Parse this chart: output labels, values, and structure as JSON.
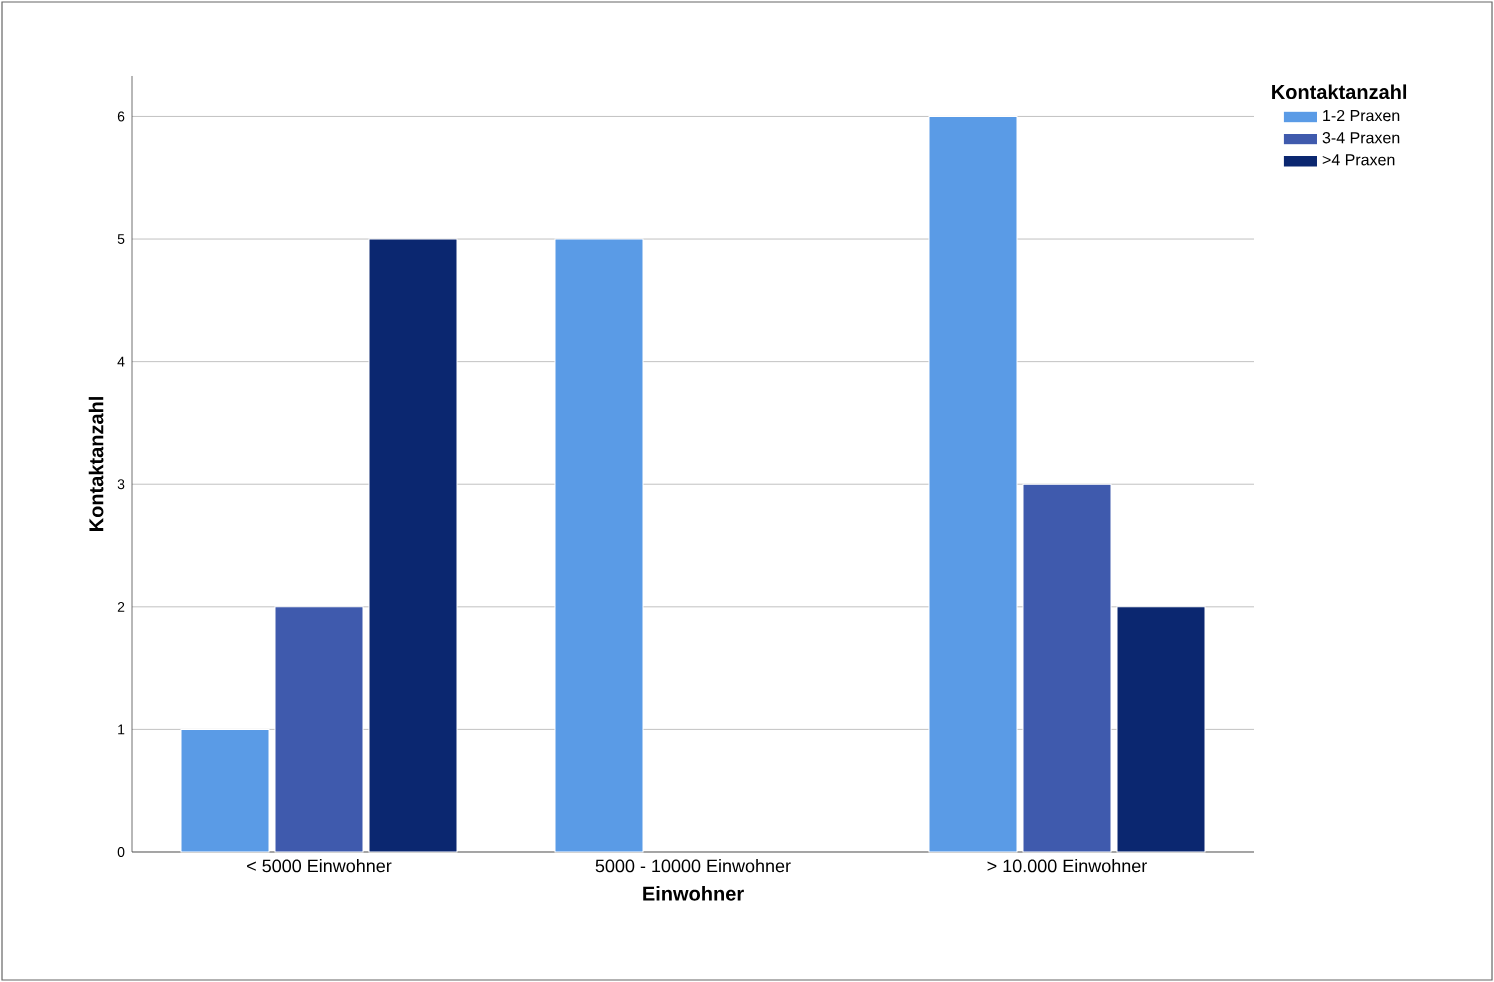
{
  "chart_data": {
    "type": "bar",
    "xlabel": "Einwohner",
    "ylabel": "Kontaktanzahl",
    "legend_title": "Kontaktanzahl",
    "legend": "top right",
    "grid": "y",
    "categories": [
      "< 5000 Einwohner",
      "5000 - 10000 Einwohner",
      "> 10.000 Einwohner"
    ],
    "ylim": [
      0,
      6.33
    ],
    "yticks": [
      0,
      1,
      2,
      3,
      4,
      5,
      6
    ],
    "series": [
      {
        "name": "1-2 Praxen",
        "color": "#5a9be6",
        "values": [
          1,
          5,
          6
        ]
      },
      {
        "name": "3-4 Praxen",
        "color": "#3f5aad",
        "values": [
          2,
          null,
          3
        ]
      },
      {
        "name": ">4 Praxen",
        "color": "#0b2770",
        "values": [
          5,
          null,
          2
        ]
      }
    ]
  }
}
